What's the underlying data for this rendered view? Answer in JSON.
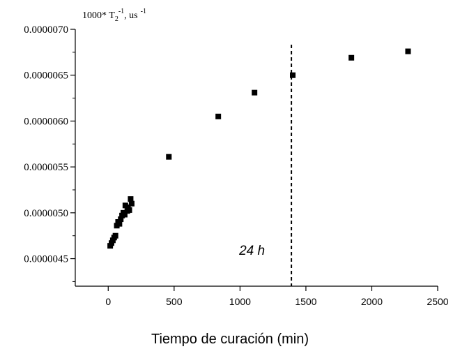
{
  "chart_data": {
    "type": "scatter",
    "title": "",
    "ylabel": {
      "main": "1000* T",
      "sub": "2",
      "sup1": "-1",
      "unit": ", us",
      "sup2": "-1"
    },
    "xlabel": "Tiempo de curación  (min)",
    "xlim": [
      -250,
      2500
    ],
    "ylim": [
      4.2e-06,
      7e-06
    ],
    "xticks": [
      0,
      500,
      1000,
      1500,
      2000,
      2500
    ],
    "xtick_labels": [
      "0",
      "500",
      "1000",
      "1500",
      "2000",
      "2500"
    ],
    "yticks": [
      4.5e-06,
      5e-06,
      5.5e-06,
      6e-06,
      6.5e-06,
      7e-06
    ],
    "ytick_labels": [
      "0.0000045",
      "0.0000050",
      "0.0000055",
      "0.0000060",
      "0.0000065",
      "0.0000070"
    ],
    "series": [
      {
        "marker": "square",
        "color": "#000000",
        "points": [
          {
            "x": 15,
            "y": 4.64e-06
          },
          {
            "x": 25,
            "y": 4.67e-06
          },
          {
            "x": 35,
            "y": 4.7e-06
          },
          {
            "x": 45,
            "y": 4.73e-06
          },
          {
            "x": 55,
            "y": 4.75e-06
          },
          {
            "x": 65,
            "y": 4.86e-06
          },
          {
            "x": 75,
            "y": 4.9e-06
          },
          {
            "x": 85,
            "y": 4.88e-06
          },
          {
            "x": 95,
            "y": 4.93e-06
          },
          {
            "x": 105,
            "y": 4.97e-06
          },
          {
            "x": 115,
            "y": 5e-06
          },
          {
            "x": 125,
            "y": 4.98e-06
          },
          {
            "x": 130,
            "y": 5.08e-06
          },
          {
            "x": 145,
            "y": 5.02e-06
          },
          {
            "x": 150,
            "y": 5.06e-06
          },
          {
            "x": 160,
            "y": 5.03e-06
          },
          {
            "x": 170,
            "y": 5.15e-06
          },
          {
            "x": 178,
            "y": 5.1e-06
          },
          {
            "x": 460,
            "y": 5.61e-06
          },
          {
            "x": 835,
            "y": 6.05e-06
          },
          {
            "x": 1110,
            "y": 6.31e-06
          },
          {
            "x": 1400,
            "y": 6.5e-06
          },
          {
            "x": 1845,
            "y": 6.69e-06
          },
          {
            "x": 2275,
            "y": 6.76e-06
          }
        ]
      }
    ],
    "annotation": {
      "text": "24 h",
      "vline_x": 1390,
      "line_style": "dashed"
    },
    "grid": false
  }
}
